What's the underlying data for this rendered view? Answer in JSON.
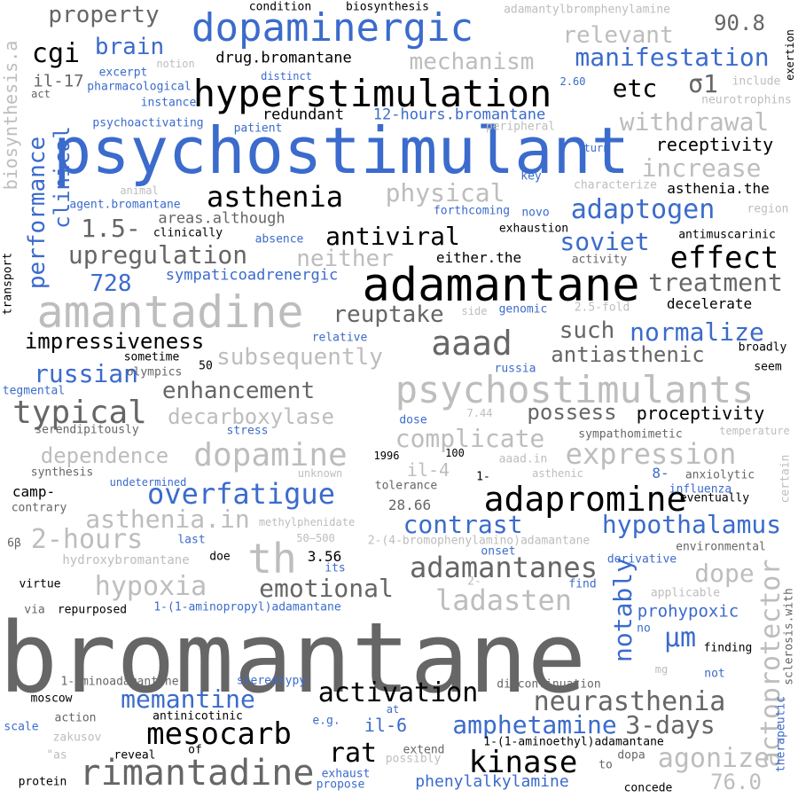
{
  "words": [
    {
      "text": "bromantane",
      "style": "dk"
    },
    {
      "text": "psychostimulant",
      "style": "bl"
    },
    {
      "text": "adamantane",
      "style": "blk"
    },
    {
      "text": "amantadine",
      "style": "lt"
    },
    {
      "text": "psychostimulants",
      "style": "lt"
    },
    {
      "text": "hyperstimulation",
      "style": "blk"
    },
    {
      "text": "dopaminergic",
      "style": "bl"
    },
    {
      "text": "rimantadine",
      "style": "dk"
    },
    {
      "text": "adapromine",
      "style": "blk"
    },
    {
      "text": "mesocarb",
      "style": "blk"
    },
    {
      "text": "kinase",
      "style": "blk"
    },
    {
      "text": "neurasthenia",
      "style": "dk"
    },
    {
      "text": "actoprotector",
      "style": "lt"
    },
    {
      "text": "th",
      "style": "lt"
    },
    {
      "text": "typical",
      "style": "dk"
    },
    {
      "text": "dopamine",
      "style": "lt"
    },
    {
      "text": "asthenia",
      "style": "blk"
    },
    {
      "text": "overfatigue",
      "style": "bl"
    },
    {
      "text": "adamantanes",
      "style": "dk"
    },
    {
      "text": "expression",
      "style": "lt"
    },
    {
      "text": "aaad",
      "style": "dk"
    },
    {
      "text": "effect",
      "style": "blk"
    },
    {
      "text": "ladasten",
      "style": "lt"
    },
    {
      "text": "agonize",
      "style": "lt"
    },
    {
      "text": "activation",
      "style": "blk"
    },
    {
      "text": "amphetamine",
      "style": "bl"
    },
    {
      "text": "memantine",
      "style": "bl"
    },
    {
      "text": "3-days",
      "style": "dk"
    },
    {
      "text": "rat",
      "style": "blk"
    },
    {
      "text": "hypoxia",
      "style": "lt"
    },
    {
      "text": "emotional",
      "style": "dk"
    },
    {
      "text": "μm",
      "style": "bl"
    },
    {
      "text": "notably",
      "style": "bl"
    },
    {
      "text": "2-hours",
      "style": "lt"
    },
    {
      "text": "hypothalamus",
      "style": "bl"
    },
    {
      "text": "contrast",
      "style": "bl"
    },
    {
      "text": "dope",
      "style": "lt"
    },
    {
      "text": "asthenia.in",
      "style": "lt"
    },
    {
      "text": "complicate",
      "style": "lt"
    },
    {
      "text": "dependence",
      "style": "lt"
    },
    {
      "text": "decarboxylase",
      "style": "lt"
    },
    {
      "text": "enhancement",
      "style": "dk"
    },
    {
      "text": "russian",
      "style": "bl"
    },
    {
      "text": "subsequently",
      "style": "lt"
    },
    {
      "text": "impressiveness",
      "style": "blk"
    },
    {
      "text": "reuptake",
      "style": "dk"
    },
    {
      "text": "such",
      "style": "dk"
    },
    {
      "text": "normalize",
      "style": "bl"
    },
    {
      "text": "antiasthenic",
      "style": "dk"
    },
    {
      "text": "possess",
      "style": "dk"
    },
    {
      "text": "proceptivity",
      "style": "blk"
    },
    {
      "text": "treatment",
      "style": "dk"
    },
    {
      "text": "adaptogen",
      "style": "bl"
    },
    {
      "text": "antiviral",
      "style": "blk"
    },
    {
      "text": "upregulation",
      "style": "dk"
    },
    {
      "text": "neither",
      "style": "lt"
    },
    {
      "text": "physical",
      "style": "lt"
    },
    {
      "text": "soviet",
      "style": "bl"
    },
    {
      "text": "1.5-",
      "style": "dk"
    },
    {
      "text": "728",
      "style": "bl"
    },
    {
      "text": "withdrawal",
      "style": "lt"
    },
    {
      "text": "increase",
      "style": "lt"
    },
    {
      "text": "receptivity",
      "style": "blk"
    },
    {
      "text": "etc",
      "style": "blk"
    },
    {
      "text": "σ1",
      "style": "dk"
    },
    {
      "text": "manifestation",
      "style": "bl"
    },
    {
      "text": "mechanism",
      "style": "lt"
    },
    {
      "text": "relevant",
      "style": "lt"
    },
    {
      "text": "90.8",
      "style": "dk"
    },
    {
      "text": "brain",
      "style": "bl"
    },
    {
      "text": "cgi",
      "style": "blk"
    },
    {
      "text": "property",
      "style": "dk"
    },
    {
      "text": "drug.bromantane",
      "style": "blk"
    },
    {
      "text": "redundant",
      "style": "blk"
    },
    {
      "text": "12-hours.bromantane",
      "style": "bl"
    },
    {
      "text": "il-17",
      "style": "dk"
    },
    {
      "text": "performance",
      "style": "bl"
    },
    {
      "text": "clinical",
      "style": "bl"
    },
    {
      "text": "biosynthesis.a",
      "style": "lt"
    },
    {
      "text": "il-6",
      "style": "bl"
    },
    {
      "text": "il-4",
      "style": "lt"
    },
    {
      "text": "prohypoxic",
      "style": "bl"
    },
    {
      "text": "76.0",
      "style": "lt"
    },
    {
      "text": "phenylalkylamine",
      "style": "bl"
    },
    {
      "text": "sympaticoadrenergic",
      "style": "bl"
    },
    {
      "text": "areas.although",
      "style": "dk"
    },
    {
      "text": "either.the",
      "style": "blk"
    },
    {
      "text": "decelerate",
      "style": "blk"
    },
    {
      "text": "asthenia.the",
      "style": "blk"
    },
    {
      "text": "camp-",
      "style": "blk"
    },
    {
      "text": "8-",
      "style": "bl"
    },
    {
      "text": "28.66",
      "style": "dk"
    },
    {
      "text": "3.56",
      "style": "blk"
    },
    {
      "text": "hydroxybromantane",
      "style": "lt"
    },
    {
      "text": "1-(1-aminopropyl)adamantane",
      "style": "bl"
    },
    {
      "text": "1-(1-aminoethyl)adamantane",
      "style": "blk"
    },
    {
      "text": "2-(4-bromophenylamino)adamantane",
      "style": "lt"
    },
    {
      "text": "1-aminoadamantane",
      "style": "dk"
    },
    {
      "text": "adamantylbromphenylamine",
      "style": "lt"
    },
    {
      "text": "condition",
      "style": "blk"
    },
    {
      "text": "biosynthesis",
      "style": "blk"
    },
    {
      "text": "excerpt",
      "style": "bl"
    },
    {
      "text": "notion",
      "style": "lt"
    },
    {
      "text": "distinct",
      "style": "bl"
    },
    {
      "text": "pharmacological",
      "style": "bl"
    },
    {
      "text": "instance",
      "style": "bl"
    },
    {
      "text": "act",
      "style": "dk"
    },
    {
      "text": "2.60",
      "style": "bl"
    },
    {
      "text": "include",
      "style": "lt"
    },
    {
      "text": "neurotrophins",
      "style": "lt"
    },
    {
      "text": "exertion",
      "style": "blk"
    },
    {
      "text": "psychoactivating",
      "style": "bl"
    },
    {
      "text": "patient",
      "style": "bl"
    },
    {
      "text": "peripheral",
      "style": "lt"
    },
    {
      "text": "turn",
      "style": "bl"
    },
    {
      "text": "key",
      "style": "bl"
    },
    {
      "text": "characterize",
      "style": "lt"
    },
    {
      "text": "animal",
      "style": "lt"
    },
    {
      "text": "agent.bromantane",
      "style": "bl"
    },
    {
      "text": "forthcoming",
      "style": "bl"
    },
    {
      "text": "novo",
      "style": "bl"
    },
    {
      "text": "region",
      "style": "lt"
    },
    {
      "text": "clinically",
      "style": "blk"
    },
    {
      "text": "exhaustion",
      "style": "blk"
    },
    {
      "text": "absence",
      "style": "bl"
    },
    {
      "text": "antimuscarinic",
      "style": "blk"
    },
    {
      "text": "activity",
      "style": "dk"
    },
    {
      "text": "transport",
      "style": "blk"
    },
    {
      "text": "side",
      "style": "lt"
    },
    {
      "text": "genomic",
      "style": "bl"
    },
    {
      "text": "2.5-fold",
      "style": "lt"
    },
    {
      "text": "relative",
      "style": "bl"
    },
    {
      "text": "broadly",
      "style": "blk"
    },
    {
      "text": "sometime",
      "style": "blk"
    },
    {
      "text": "50",
      "style": "blk"
    },
    {
      "text": "olympics",
      "style": "dk"
    },
    {
      "text": "russia",
      "style": "bl"
    },
    {
      "text": "seem",
      "style": "blk"
    },
    {
      "text": "tegmental",
      "style": "bl"
    },
    {
      "text": "dose",
      "style": "bl"
    },
    {
      "text": "7.44",
      "style": "lt"
    },
    {
      "text": "serendipitously",
      "style": "dk"
    },
    {
      "text": "stress",
      "style": "bl"
    },
    {
      "text": "sympathomimetic",
      "style": "dk"
    },
    {
      "text": "temperature",
      "style": "lt"
    },
    {
      "text": "synthesis",
      "style": "dk"
    },
    {
      "text": "1996",
      "style": "blk"
    },
    {
      "text": "100",
      "style": "blk"
    },
    {
      "text": "aaad.in",
      "style": "lt"
    },
    {
      "text": "anxiolytic",
      "style": "dk"
    },
    {
      "text": "certain",
      "style": "lt"
    },
    {
      "text": "undetermined",
      "style": "bl"
    },
    {
      "text": "unknown",
      "style": "lt"
    },
    {
      "text": "1-",
      "style": "blk"
    },
    {
      "text": "asthenic",
      "style": "lt"
    },
    {
      "text": "influenza",
      "style": "bl"
    },
    {
      "text": "contrary",
      "style": "dk"
    },
    {
      "text": "tolerance",
      "style": "dk"
    },
    {
      "text": "eventually",
      "style": "blk"
    },
    {
      "text": "6β",
      "style": "dk"
    },
    {
      "text": "last",
      "style": "bl"
    },
    {
      "text": "methylphenidate",
      "style": "lt"
    },
    {
      "text": "50–500",
      "style": "lt"
    },
    {
      "text": "environmental",
      "style": "dk"
    },
    {
      "text": "doe",
      "style": "blk"
    },
    {
      "text": "onset",
      "style": "bl"
    },
    {
      "text": "derivative",
      "style": "bl"
    },
    {
      "text": "virtue",
      "style": "blk"
    },
    {
      "text": "its",
      "style": "bl"
    },
    {
      "text": "2-",
      "style": "lt"
    },
    {
      "text": "find",
      "style": "bl"
    },
    {
      "text": "applicable",
      "style": "lt"
    },
    {
      "text": "sclerosis.with",
      "style": "dk"
    },
    {
      "text": "via",
      "style": "dk"
    },
    {
      "text": "repurposed",
      "style": "blk"
    },
    {
      "text": "no",
      "style": "bl"
    },
    {
      "text": "mg",
      "style": "lt"
    },
    {
      "text": "finding",
      "style": "blk"
    },
    {
      "text": "stereotypy",
      "style": "bl"
    },
    {
      "text": "not",
      "style": "bl"
    },
    {
      "text": "moscow",
      "style": "blk"
    },
    {
      "text": "discontinuation",
      "style": "dk"
    },
    {
      "text": "therapeutic",
      "style": "bl"
    },
    {
      "text": "action",
      "style": "dk"
    },
    {
      "text": "antinicotinic",
      "style": "blk"
    },
    {
      "text": "at",
      "style": "bl"
    },
    {
      "text": "scale",
      "style": "bl"
    },
    {
      "text": "e.g.",
      "style": "bl"
    },
    {
      "text": "zakusov",
      "style": "lt"
    },
    {
      "text": "extend",
      "style": "dk"
    },
    {
      "text": "\"as",
      "style": "lt"
    },
    {
      "text": "reveal",
      "style": "blk"
    },
    {
      "text": "of",
      "style": "blk"
    },
    {
      "text": "possibly",
      "style": "lt"
    },
    {
      "text": "dopa",
      "style": "dk"
    },
    {
      "text": "to",
      "style": "dk"
    },
    {
      "text": "exhaust",
      "style": "bl"
    },
    {
      "text": "propose",
      "style": "bl"
    },
    {
      "text": "protein",
      "style": "blk"
    },
    {
      "text": "concede",
      "style": "blk"
    }
  ]
}
